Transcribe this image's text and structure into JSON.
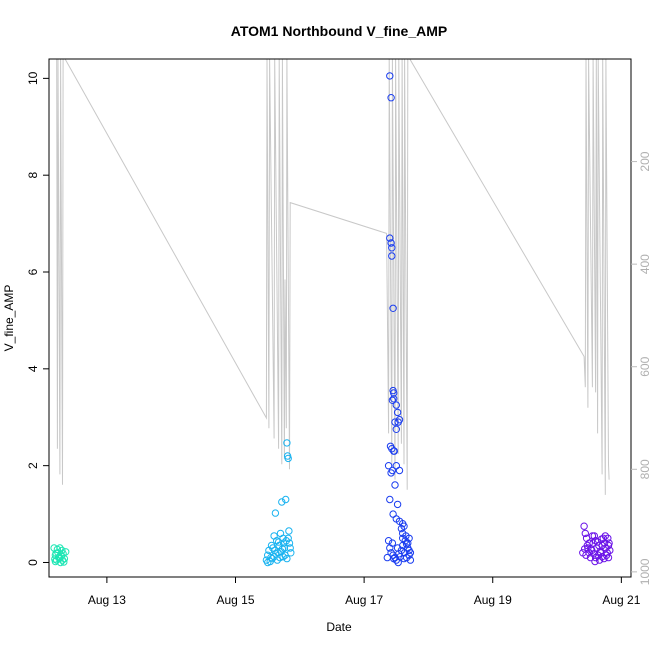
{
  "chart_data": {
    "type": "scatter",
    "title": "ATOM1 Northbound V_fine_AMP",
    "xlabel": "Date",
    "ylabel": "V_fine_AMP",
    "x_axis": {
      "unit": "days of August",
      "range": [
        12.1,
        21.15
      ],
      "ticks": [
        {
          "value": 13,
          "label": "Aug 13"
        },
        {
          "value": 15,
          "label": "Aug 15"
        },
        {
          "value": 17,
          "label": "Aug 17"
        },
        {
          "value": 19,
          "label": "Aug 19"
        },
        {
          "value": 21,
          "label": "Aug 21"
        }
      ]
    },
    "y_axis_left": {
      "range": [
        -0.3,
        10.4
      ],
      "ticks": [
        0,
        2,
        4,
        6,
        8,
        10
      ],
      "tick_labels": [
        "0",
        "2",
        "4",
        "6",
        "8",
        "10"
      ]
    },
    "y_axis_right": {
      "reversed": true,
      "range": [
        1010,
        0
      ],
      "ticks": [
        200,
        400,
        600,
        800,
        1000
      ],
      "tick_labels": [
        "200",
        "400",
        "600",
        "800",
        "1000"
      ],
      "color": "#bbbbbb"
    },
    "grid": false,
    "legend": "none",
    "background_line": {
      "color": "#c8c8c8",
      "axis": "right",
      "points": [
        [
          12.22,
          0
        ],
        [
          12.23,
          760
        ],
        [
          12.24,
          0
        ],
        [
          12.27,
          810
        ],
        [
          12.28,
          0
        ],
        [
          12.31,
          830
        ],
        [
          12.32,
          0
        ],
        [
          12.35,
          0
        ],
        [
          15.48,
          700
        ],
        [
          15.49,
          0
        ],
        [
          15.52,
          720
        ],
        [
          15.53,
          0
        ],
        [
          15.6,
          740
        ],
        [
          15.61,
          0
        ],
        [
          15.67,
          760
        ],
        [
          15.68,
          0
        ],
        [
          15.72,
          790
        ],
        [
          15.73,
          0
        ],
        [
          15.76,
          780
        ],
        [
          15.77,
          430
        ],
        [
          15.79,
          720
        ],
        [
          15.8,
          0
        ],
        [
          15.84,
          800
        ],
        [
          15.85,
          280
        ],
        [
          17.35,
          340
        ],
        [
          17.38,
          730
        ],
        [
          17.39,
          0
        ],
        [
          17.43,
          790
        ],
        [
          17.44,
          0
        ],
        [
          17.48,
          820
        ],
        [
          17.49,
          0
        ],
        [
          17.53,
          770
        ],
        [
          17.54,
          0
        ],
        [
          17.58,
          750
        ],
        [
          17.59,
          0
        ],
        [
          17.62,
          790
        ],
        [
          17.63,
          0
        ],
        [
          17.67,
          840
        ],
        [
          17.68,
          0
        ],
        [
          17.71,
          0
        ],
        [
          20.42,
          580
        ],
        [
          20.44,
          640
        ],
        [
          20.45,
          0
        ],
        [
          20.48,
          680
        ],
        [
          20.49,
          0
        ],
        [
          20.55,
          640
        ],
        [
          20.56,
          0
        ],
        [
          20.6,
          650
        ],
        [
          20.61,
          0
        ],
        [
          20.63,
          730
        ],
        [
          20.64,
          0
        ],
        [
          20.7,
          810
        ],
        [
          20.71,
          0
        ],
        [
          20.75,
          850
        ],
        [
          20.76,
          0
        ],
        [
          20.8,
          790
        ],
        [
          20.81,
          820
        ]
      ]
    },
    "series": [
      {
        "color": "#1de6b4",
        "points": [
          [
            12.18,
            0.3
          ],
          [
            12.2,
            0.15
          ],
          [
            12.22,
            0.05
          ],
          [
            12.24,
            0.2
          ],
          [
            12.25,
            0.1
          ],
          [
            12.27,
            0.3
          ],
          [
            12.28,
            0.0
          ],
          [
            12.3,
            0.25
          ],
          [
            12.32,
            0.18
          ],
          [
            12.34,
            0.08
          ],
          [
            12.2,
            0.02
          ],
          [
            12.26,
            0.12
          ],
          [
            12.31,
            0.05
          ],
          [
            12.36,
            0.22
          ],
          [
            12.23,
            0.27
          ],
          [
            12.29,
            0.15
          ],
          [
            12.19,
            0.07
          ],
          [
            12.33,
            0.01
          ],
          [
            12.21,
            0.19
          ],
          [
            12.27,
            0.09
          ]
        ]
      },
      {
        "color": "#1ab3f0",
        "points": [
          [
            15.48,
            0.05
          ],
          [
            15.5,
            0.15
          ],
          [
            15.52,
            0.25
          ],
          [
            15.55,
            0.1
          ],
          [
            15.58,
            0.3
          ],
          [
            15.6,
            0.55
          ],
          [
            15.62,
            1.02
          ],
          [
            15.64,
            0.45
          ],
          [
            15.66,
            0.2
          ],
          [
            15.68,
            0.35
          ],
          [
            15.7,
            0.6
          ],
          [
            15.72,
            1.25
          ],
          [
            15.74,
            0.5
          ],
          [
            15.76,
            0.3
          ],
          [
            15.78,
            1.3
          ],
          [
            15.8,
            2.47
          ],
          [
            15.81,
            2.2
          ],
          [
            15.82,
            2.15
          ],
          [
            15.83,
            0.65
          ],
          [
            15.84,
            0.4
          ],
          [
            15.86,
            0.2
          ],
          [
            15.5,
            0.0
          ],
          [
            15.54,
            0.02
          ],
          [
            15.57,
            0.08
          ],
          [
            15.6,
            0.12
          ],
          [
            15.63,
            0.18
          ],
          [
            15.65,
            0.05
          ],
          [
            15.69,
            0.1
          ],
          [
            15.71,
            0.22
          ],
          [
            15.73,
            0.28
          ],
          [
            15.75,
            0.4
          ],
          [
            15.77,
            0.15
          ],
          [
            15.79,
            0.45
          ],
          [
            15.82,
            0.5
          ],
          [
            15.85,
            0.3
          ],
          [
            15.56,
            0.35
          ],
          [
            15.61,
            0.25
          ],
          [
            15.67,
            0.42
          ],
          [
            15.74,
            0.12
          ],
          [
            15.8,
            0.08
          ]
        ]
      },
      {
        "color": "#1a3df0",
        "points": [
          [
            17.4,
            10.05
          ],
          [
            17.42,
            9.6
          ],
          [
            17.4,
            6.7
          ],
          [
            17.42,
            6.6
          ],
          [
            17.43,
            6.5
          ],
          [
            17.43,
            6.33
          ],
          [
            17.45,
            5.25
          ],
          [
            17.46,
            3.5
          ],
          [
            17.45,
            3.55
          ],
          [
            17.46,
            3.38
          ],
          [
            17.44,
            3.35
          ],
          [
            17.5,
            3.25
          ],
          [
            17.52,
            3.1
          ],
          [
            17.48,
            2.9
          ],
          [
            17.5,
            2.75
          ],
          [
            17.53,
            2.9
          ],
          [
            17.55,
            2.95
          ],
          [
            17.41,
            2.4
          ],
          [
            17.43,
            2.35
          ],
          [
            17.46,
            2.3
          ],
          [
            17.47,
            2.3
          ],
          [
            17.38,
            2.0
          ],
          [
            17.42,
            1.85
          ],
          [
            17.44,
            1.9
          ],
          [
            17.5,
            2.0
          ],
          [
            17.55,
            1.9
          ],
          [
            17.48,
            1.6
          ],
          [
            17.4,
            1.3
          ],
          [
            17.52,
            1.2
          ],
          [
            17.45,
            1.0
          ],
          [
            17.5,
            0.9
          ],
          [
            17.55,
            0.85
          ],
          [
            17.6,
            0.8
          ],
          [
            17.62,
            0.75
          ],
          [
            17.58,
            0.7
          ],
          [
            17.6,
            0.6
          ],
          [
            17.65,
            0.55
          ],
          [
            17.7,
            0.5
          ],
          [
            17.68,
            0.4
          ],
          [
            17.4,
            0.3
          ],
          [
            17.42,
            0.2
          ],
          [
            17.45,
            0.15
          ],
          [
            17.48,
            0.1
          ],
          [
            17.5,
            0.05
          ],
          [
            17.53,
            0.0
          ],
          [
            17.56,
            0.12
          ],
          [
            17.58,
            0.25
          ],
          [
            17.6,
            0.35
          ],
          [
            17.63,
            0.2
          ],
          [
            17.66,
            0.1
          ],
          [
            17.68,
            0.3
          ],
          [
            17.7,
            0.15
          ],
          [
            17.72,
            0.05
          ],
          [
            17.38,
            0.45
          ],
          [
            17.44,
            0.4
          ],
          [
            17.52,
            0.3
          ],
          [
            17.6,
            0.5
          ],
          [
            17.64,
            0.45
          ],
          [
            17.7,
            0.25
          ],
          [
            17.46,
            0.08
          ],
          [
            17.54,
            0.18
          ],
          [
            17.62,
            0.08
          ],
          [
            17.66,
            0.38
          ],
          [
            17.72,
            0.2
          ],
          [
            17.36,
            0.1
          ]
        ]
      },
      {
        "color": "#6a12e8",
        "points": [
          [
            20.42,
            0.75
          ],
          [
            20.44,
            0.6
          ],
          [
            20.46,
            0.5
          ],
          [
            20.48,
            0.3
          ],
          [
            20.5,
            0.2
          ],
          [
            20.52,
            0.1
          ],
          [
            20.54,
            0.25
          ],
          [
            20.56,
            0.4
          ],
          [
            20.58,
            0.55
          ],
          [
            20.6,
            0.45
          ],
          [
            20.62,
            0.3
          ],
          [
            20.64,
            0.15
          ],
          [
            20.66,
            0.05
          ],
          [
            20.68,
            0.2
          ],
          [
            20.7,
            0.35
          ],
          [
            20.72,
            0.5
          ],
          [
            20.74,
            0.4
          ],
          [
            20.76,
            0.3
          ],
          [
            20.78,
            0.2
          ],
          [
            20.8,
            0.35
          ],
          [
            20.82,
            0.25
          ],
          [
            20.4,
            0.2
          ],
          [
            20.45,
            0.15
          ],
          [
            20.5,
            0.4
          ],
          [
            20.55,
            0.55
          ],
          [
            20.6,
            0.1
          ],
          [
            20.65,
            0.35
          ],
          [
            20.7,
            0.12
          ],
          [
            20.75,
            0.55
          ],
          [
            20.8,
            0.1
          ],
          [
            20.47,
            0.35
          ],
          [
            20.53,
            0.28
          ],
          [
            20.57,
            0.18
          ],
          [
            20.63,
            0.42
          ],
          [
            20.67,
            0.22
          ],
          [
            20.73,
            0.08
          ],
          [
            20.77,
            0.15
          ],
          [
            20.81,
            0.4
          ],
          [
            20.43,
            0.28
          ],
          [
            20.59,
            0.02
          ],
          [
            20.69,
            0.48
          ],
          [
            20.79,
            0.5
          ]
        ]
      }
    ]
  }
}
